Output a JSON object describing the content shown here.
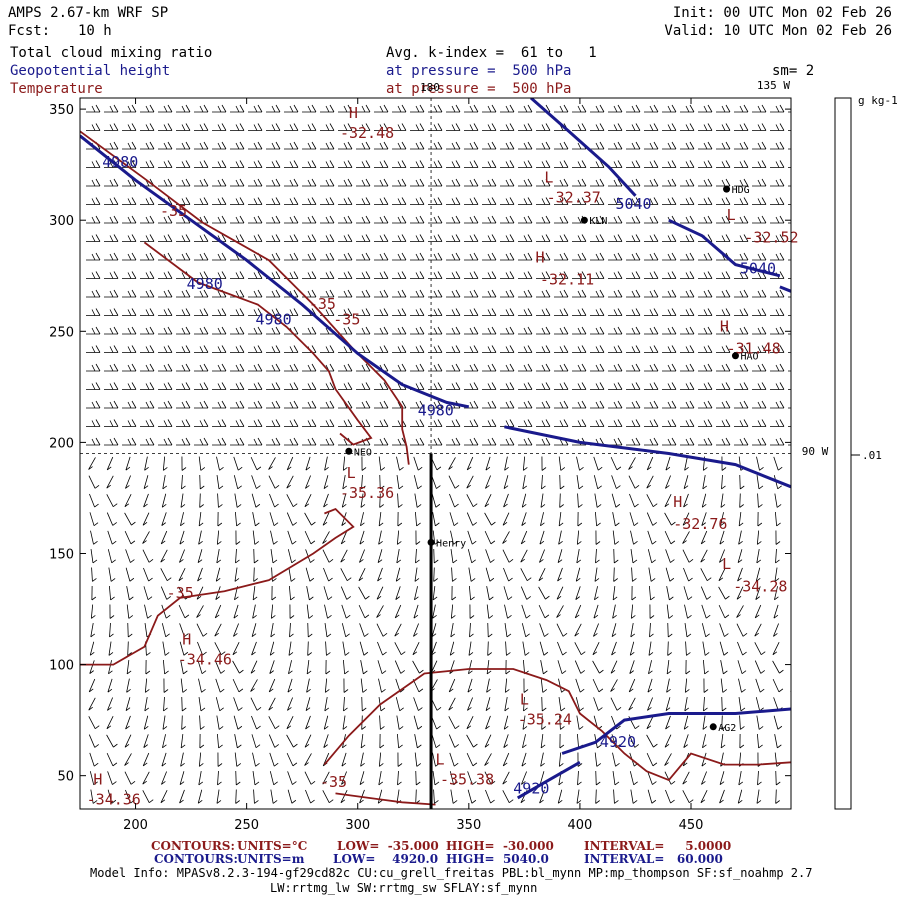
{
  "header": {
    "model": "AMPS 2.67-km WRF SP",
    "fcst_label": "Fcst:",
    "fcst_value": "10 h",
    "init": "Init: 00 UTC Mon 02 Feb 26",
    "valid": "Valid: 10 UTC Mon 02 Feb 26",
    "field1": "Total cloud mixing ratio",
    "field1_info": "Avg. k-index =  61 to   1",
    "field2": "Geopotential height",
    "field2_info": "at pressure =  500 hPa",
    "field3": "Temperature",
    "field3_info": "at pressure =  500 hPa",
    "smoothing": "sm= 2"
  },
  "colors": {
    "temperature": "#8b1a1a",
    "height": "#1a1a8c",
    "barbs": "#000000",
    "section": "#000000"
  },
  "chart_data": {
    "type": "contour",
    "xlim": [
      175,
      495
    ],
    "ylim": [
      35,
      355
    ],
    "x_ticks": [
      200,
      250,
      300,
      350,
      400,
      450
    ],
    "y_ticks": [
      50,
      100,
      150,
      200,
      250,
      300,
      350
    ],
    "lon_labels": [
      "180",
      "135 W",
      "90 W"
    ],
    "colorbar": {
      "unit": "g kg-1",
      "tick": ".01"
    },
    "stations": [
      {
        "name": "HDG",
        "x": 466,
        "y": 314
      },
      {
        "name": "KLN",
        "x": 402,
        "y": 300
      },
      {
        "name": "HAO",
        "x": 470,
        "y": 239
      },
      {
        "name": "NEO",
        "x": 296,
        "y": 196
      },
      {
        "name": "Henry",
        "x": 333,
        "y": 155
      },
      {
        "name": "AG2",
        "x": 460,
        "y": 72
      }
    ],
    "temperature_labels": [
      {
        "text": "H",
        "x": 296,
        "y": 346
      },
      {
        "text": "-32.48",
        "x": 292,
        "y": 337
      },
      {
        "text": "L",
        "x": 384,
        "y": 317
      },
      {
        "text": "-32.37",
        "x": 385,
        "y": 308
      },
      {
        "text": "L",
        "x": 466,
        "y": 300
      },
      {
        "text": "-32.52",
        "x": 474,
        "y": 290
      },
      {
        "text": "H",
        "x": 380,
        "y": 281
      },
      {
        "text": "-32.11",
        "x": 382,
        "y": 271
      },
      {
        "text": "H",
        "x": 463,
        "y": 250
      },
      {
        "text": "-31.48",
        "x": 466,
        "y": 240
      },
      {
        "text": "L",
        "x": 295,
        "y": 184
      },
      {
        "text": "-35.36",
        "x": 292,
        "y": 175
      },
      {
        "text": "H",
        "x": 442,
        "y": 171
      },
      {
        "text": "-32.76",
        "x": 442,
        "y": 161
      },
      {
        "text": "L",
        "x": 464,
        "y": 143
      },
      {
        "text": "-34.28",
        "x": 469,
        "y": 133
      },
      {
        "text": "H",
        "x": 221,
        "y": 109
      },
      {
        "text": "-34.46",
        "x": 219,
        "y": 100
      },
      {
        "text": "L",
        "x": 373,
        "y": 82
      },
      {
        "text": "-35.24",
        "x": 372,
        "y": 73
      },
      {
        "text": "L",
        "x": 335,
        "y": 55
      },
      {
        "text": "-35.38",
        "x": 337,
        "y": 46
      },
      {
        "text": "H",
        "x": 181,
        "y": 46
      },
      {
        "text": "-34.36",
        "x": 178,
        "y": 37
      },
      {
        "text": "-35",
        "x": 211,
        "y": 302
      },
      {
        "text": "-35",
        "x": 278,
        "y": 260
      },
      {
        "text": "-35",
        "x": 289,
        "y": 253
      },
      {
        "text": "-35",
        "x": 214,
        "y": 130
      },
      {
        "text": "-35",
        "x": 283,
        "y": 45
      }
    ],
    "height_labels": [
      {
        "text": "4980",
        "x": 185,
        "y": 324
      },
      {
        "text": "5040",
        "x": 416,
        "y": 305
      },
      {
        "text": "5040",
        "x": 472,
        "y": 276
      },
      {
        "text": "4980",
        "x": 223,
        "y": 269
      },
      {
        "text": "4980",
        "x": 254,
        "y": 253
      },
      {
        "text": "4980",
        "x": 327,
        "y": 212
      },
      {
        "text": "4920",
        "x": 409,
        "y": 63
      },
      {
        "text": "4920",
        "x": 370,
        "y": 42
      }
    ],
    "height_contours": [
      {
        "value": 4980,
        "points": [
          [
            175,
            338
          ],
          [
            200,
            318
          ],
          [
            225,
            300
          ],
          [
            250,
            282
          ],
          [
            275,
            262
          ],
          [
            300,
            240
          ],
          [
            320,
            226
          ],
          [
            340,
            218
          ],
          [
            350,
            216
          ]
        ]
      },
      {
        "value": 4980,
        "points": [
          [
            366,
            207
          ],
          [
            400,
            200
          ],
          [
            440,
            195
          ],
          [
            470,
            190
          ],
          [
            495,
            180
          ]
        ]
      },
      {
        "value": 5040,
        "points": [
          [
            378,
            355
          ],
          [
            395,
            340
          ],
          [
            413,
            324
          ],
          [
            425,
            311
          ]
        ]
      },
      {
        "value": 5040,
        "points": [
          [
            440,
            300
          ],
          [
            455,
            293
          ],
          [
            470,
            280
          ],
          [
            490,
            275
          ]
        ]
      },
      {
        "value": 5040,
        "points": [
          [
            490,
            270
          ],
          [
            495,
            268
          ]
        ]
      },
      {
        "value": 4920,
        "points": [
          [
            392,
            60
          ],
          [
            407,
            65
          ],
          [
            420,
            75
          ],
          [
            440,
            78
          ],
          [
            470,
            78
          ],
          [
            495,
            80
          ]
        ]
      },
      {
        "value": 4920,
        "points": [
          [
            372,
            40
          ],
          [
            386,
            48
          ],
          [
            400,
            56
          ]
        ]
      }
    ],
    "temperature_contours": [
      {
        "value": -35,
        "points": [
          [
            175,
            340
          ],
          [
            205,
            318
          ],
          [
            230,
            299
          ],
          [
            260,
            282
          ],
          [
            280,
            262
          ],
          [
            298,
            242
          ],
          [
            312,
            228
          ],
          [
            320,
            216
          ],
          [
            320,
            206
          ],
          [
            322,
            198
          ],
          [
            323,
            190
          ]
        ]
      },
      {
        "value": -35,
        "points": [
          [
            204,
            290
          ],
          [
            228,
            272
          ],
          [
            255,
            262
          ],
          [
            268,
            252
          ],
          [
            280,
            240
          ],
          [
            287,
            232
          ],
          [
            290,
            224
          ],
          [
            300,
            210
          ],
          [
            306,
            202
          ],
          [
            298,
            199
          ],
          [
            292,
            204
          ]
        ]
      },
      {
        "value": -35,
        "points": [
          [
            175,
            100
          ],
          [
            190,
            100
          ],
          [
            204,
            108
          ],
          [
            210,
            122
          ],
          [
            220,
            130
          ],
          [
            240,
            133
          ],
          [
            260,
            138
          ],
          [
            280,
            150
          ],
          [
            290,
            157
          ],
          [
            298,
            162
          ],
          [
            290,
            170
          ],
          [
            285,
            168
          ]
        ]
      },
      {
        "value": -35,
        "points": [
          [
            285,
            55
          ],
          [
            296,
            68
          ],
          [
            310,
            82
          ],
          [
            330,
            96
          ],
          [
            350,
            98
          ],
          [
            370,
            98
          ],
          [
            385,
            93
          ],
          [
            395,
            88
          ],
          [
            400,
            78
          ],
          [
            410,
            70
          ],
          [
            420,
            60
          ],
          [
            430,
            52
          ],
          [
            440,
            48
          ],
          [
            450,
            60
          ],
          [
            465,
            55
          ],
          [
            480,
            55
          ],
          [
            495,
            56
          ]
        ]
      },
      {
        "value": -35,
        "points": [
          [
            290,
            42
          ],
          [
            305,
            40
          ],
          [
            320,
            38
          ],
          [
            335,
            37
          ]
        ]
      }
    ],
    "cross_section": [
      [
        333,
        195
      ],
      [
        333,
        35
      ]
    ],
    "ref_lines": {
      "vertical_x": 333,
      "horizontal_y": 195
    }
  },
  "footer": {
    "line1_label": "CONTOURS:",
    "line1_units": "UNITS=°C",
    "line1_low": "LOW=  -35.000",
    "line1_high": "HIGH=  -30.000",
    "line1_interval": "INTERVAL=     5.0000",
    "line2_label": "CONTOURS:",
    "line2_units": "UNITS=m",
    "line2_low": "LOW=    4920.0",
    "line2_high": "HIGH=  5040.0",
    "line2_interval": "INTERVAL=   60.000",
    "model_info": "Model Info: MPASv8.2.3-194-gf29cd82c CU:cu_grell_freitas PBL:bl_mynn MP:mp_thompson SF:sf_noahmp 2.7",
    "model_info2": "LW:rrtmg_lw SW:rrtmg_sw SFLAY:sf_mynn"
  }
}
